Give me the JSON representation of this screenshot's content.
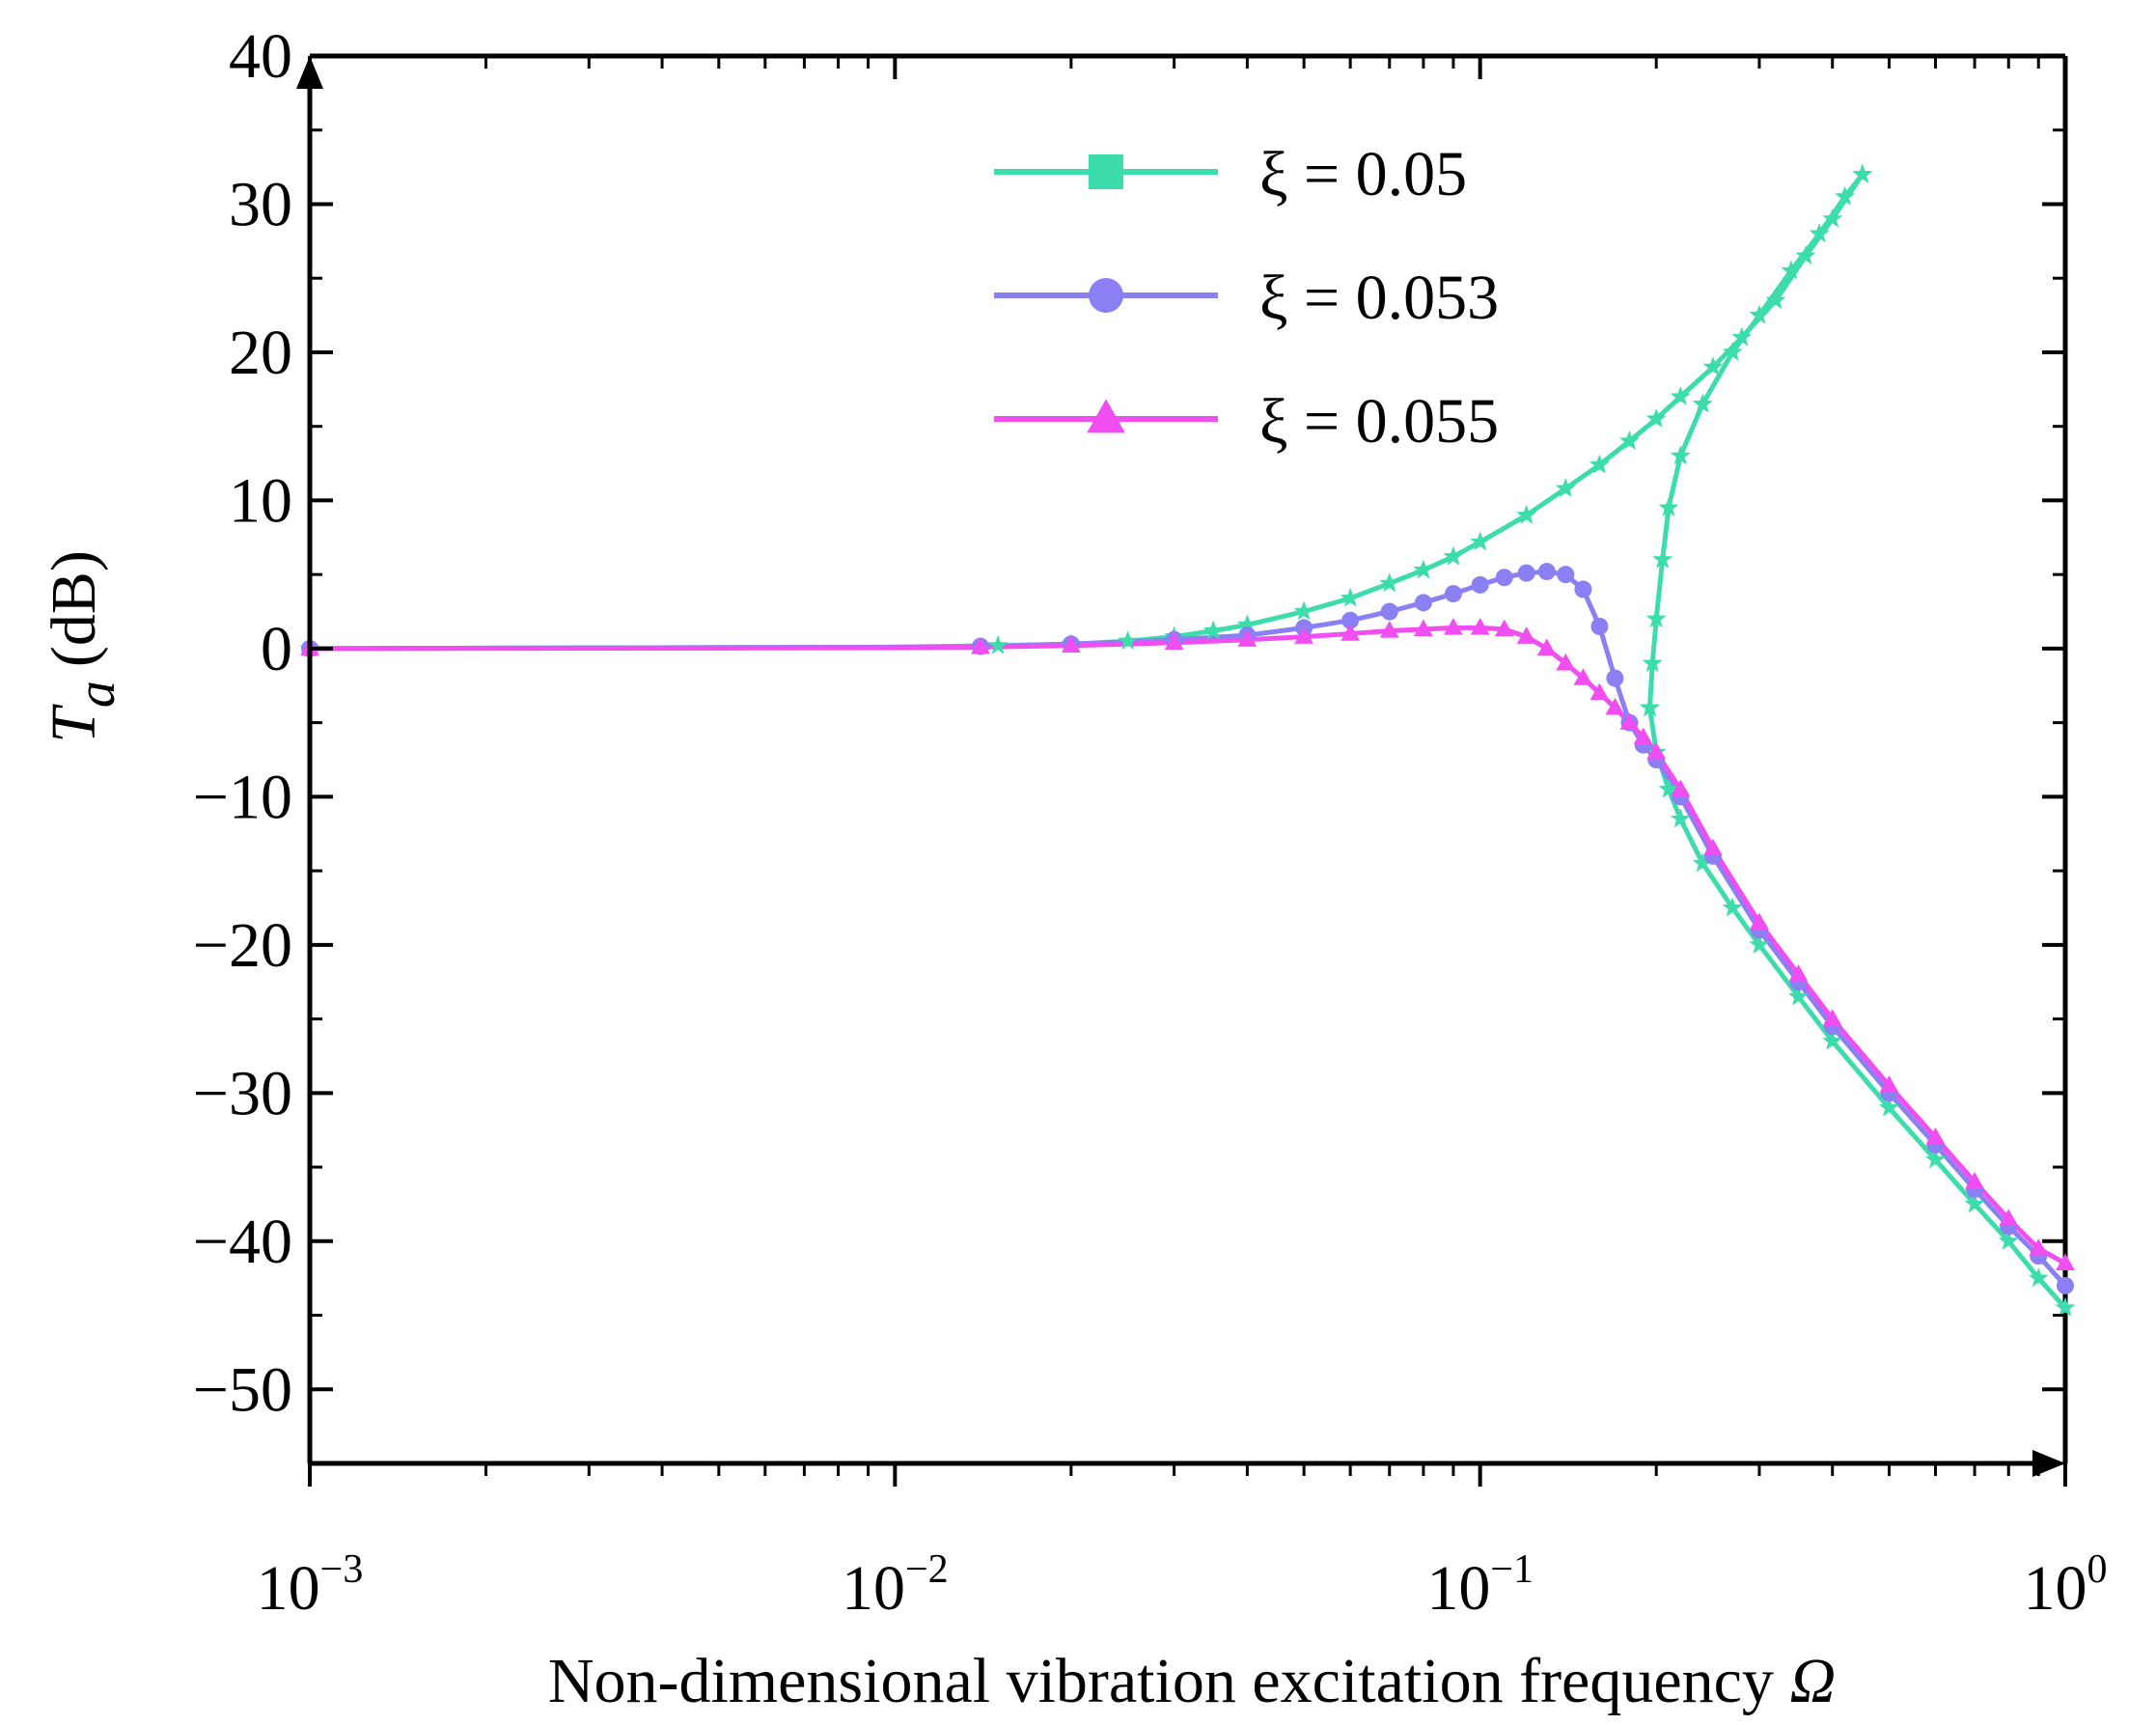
{
  "chart_data": {
    "type": "line",
    "xlabel": "Non-dimensional vibration excitation frequency",
    "xlabel_symbol": "Ω",
    "ylabel_symbol": "T",
    "ylabel_subscript": "a",
    "ylabel_unit": "(dB)",
    "x_scale": "log",
    "xlim": [
      0.001,
      1
    ],
    "ylim": [
      -55,
      40
    ],
    "x_ticks": [
      {
        "base": "10",
        "exp": "−3",
        "value": 0.001
      },
      {
        "base": "10",
        "exp": "−2",
        "value": 0.01
      },
      {
        "base": "10",
        "exp": "−1",
        "value": 0.1
      },
      {
        "base": "10",
        "exp": "0",
        "value": 1
      }
    ],
    "y_ticks": [
      {
        "label": "40",
        "value": 40
      },
      {
        "label": "30",
        "value": 30
      },
      {
        "label": "20",
        "value": 20
      },
      {
        "label": "10",
        "value": 10
      },
      {
        "label": "0",
        "value": 0
      },
      {
        "label": "−10",
        "value": -10
      },
      {
        "label": "−20",
        "value": -20
      },
      {
        "label": "−30",
        "value": -30
      },
      {
        "label": "−40",
        "value": -40
      },
      {
        "label": "−50",
        "value": -50
      }
    ],
    "grid": false,
    "legend_position": "top-right",
    "series": [
      {
        "name": "ξ =  0.05",
        "color": "#3ddcac",
        "legend_marker": "square",
        "marker": "star",
        "branches": [
          {
            "x": [
              0.001,
              0.01,
              0.015,
              0.02,
              0.025,
              0.03,
              0.035,
              0.04,
              0.05,
              0.06,
              0.07,
              0.08,
              0.09,
              0.1,
              0.12,
              0.14,
              0.16,
              0.18,
              0.2,
              0.22,
              0.25,
              0.28,
              0.32,
              0.36,
              0.4,
              0.45
            ],
            "y": [
              0,
              0.1,
              0.2,
              0.3,
              0.5,
              0.8,
              1.2,
              1.6,
              2.5,
              3.4,
              4.4,
              5.3,
              6.2,
              7.2,
              9.0,
              10.8,
              12.4,
              14.0,
              15.5,
              17.0,
              19.0,
              21.0,
              23.5,
              26.5,
              29.0,
              32.0
            ]
          },
          {
            "x": [
              0.195,
              0.197,
              0.2,
              0.205,
              0.21,
              0.22,
              0.24,
              0.27,
              0.3,
              0.34,
              0.38,
              0.42,
              0.45
            ],
            "y": [
              -4.0,
              -1.0,
              2.0,
              6.0,
              9.5,
              13.0,
              16.5,
              20.0,
              22.5,
              25.5,
              28.0,
              30.5,
              32.0
            ]
          },
          {
            "x": [
              0.195,
              0.2,
              0.21,
              0.22,
              0.24,
              0.27,
              0.3,
              0.35,
              0.4,
              0.5,
              0.6,
              0.7,
              0.8,
              0.9,
              1.0
            ],
            "y": [
              -4.0,
              -7.0,
              -9.5,
              -11.5,
              -14.5,
              -17.5,
              -20.0,
              -23.5,
              -26.5,
              -31.0,
              -34.5,
              -37.5,
              -40.0,
              -42.5,
              -44.5
            ]
          }
        ]
      },
      {
        "name": "ξ =  0.053",
        "color": "#8a80f4",
        "legend_marker": "circle",
        "marker": "circle",
        "branches": [
          {
            "x": [
              0.001,
              0.01,
              0.014,
              0.02,
              0.03,
              0.04,
              0.05,
              0.06,
              0.07,
              0.08,
              0.09,
              0.1,
              0.11,
              0.12,
              0.13,
              0.14,
              0.15,
              0.16,
              0.17,
              0.18,
              0.19,
              0.2,
              0.22,
              0.25,
              0.3,
              0.35,
              0.4,
              0.5,
              0.6,
              0.7,
              0.8,
              0.9,
              1.0
            ],
            "y": [
              0,
              0.1,
              0.15,
              0.3,
              0.6,
              0.9,
              1.4,
              1.9,
              2.5,
              3.1,
              3.7,
              4.3,
              4.8,
              5.1,
              5.2,
              5.0,
              4.0,
              1.5,
              -2.0,
              -5.0,
              -6.5,
              -7.5,
              -10.0,
              -14.0,
              -19.0,
              -22.5,
              -25.5,
              -30.0,
              -33.5,
              -36.5,
              -39.0,
              -41.0,
              -43.0
            ]
          }
        ]
      },
      {
        "name": "ξ =  0.055",
        "color": "#f04ef0",
        "legend_marker": "triangle",
        "marker": "triangle",
        "branches": [
          {
            "x": [
              0.001,
              0.01,
              0.014,
              0.02,
              0.03,
              0.04,
              0.05,
              0.06,
              0.07,
              0.08,
              0.09,
              0.1,
              0.11,
              0.12,
              0.13,
              0.14,
              0.15,
              0.16,
              0.17,
              0.18,
              0.19,
              0.2,
              0.22,
              0.25,
              0.3,
              0.35,
              0.4,
              0.5,
              0.6,
              0.7,
              0.8,
              0.9,
              1.0
            ],
            "y": [
              0,
              0.05,
              0.1,
              0.2,
              0.4,
              0.6,
              0.8,
              1.0,
              1.2,
              1.3,
              1.4,
              1.4,
              1.3,
              0.8,
              0.0,
              -1.0,
              -2.0,
              -3.0,
              -4.0,
              -5.0,
              -6.0,
              -7.0,
              -9.5,
              -13.5,
              -18.5,
              -22.0,
              -25.0,
              -29.5,
              -33.0,
              -36.0,
              -38.5,
              -40.5,
              -41.5
            ]
          }
        ]
      }
    ]
  }
}
